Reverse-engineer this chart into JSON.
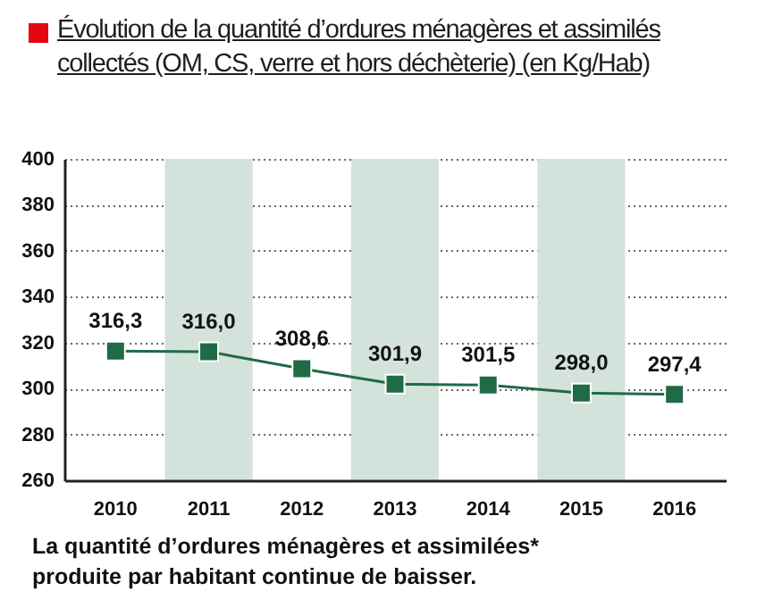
{
  "chart_data": {
    "type": "line",
    "title": "Évolution de la quantité d’ordures ménagères et assimilés collectés (OM, CS, verre et hors déchèterie) (en Kg/Hab)",
    "categories": [
      "2010",
      "2011",
      "2012",
      "2013",
      "2014",
      "2015",
      "2016"
    ],
    "series": [
      {
        "color": "#1e6b45",
        "values": [
          316.3,
          316.0,
          308.6,
          301.9,
          301.5,
          298.0,
          297.4
        ],
        "value_labels": [
          "316,3",
          "316,0",
          "308,6",
          "301,9",
          "301,5",
          "298,0",
          "297,4"
        ]
      }
    ],
    "ylim": [
      260,
      400
    ],
    "yticks": [
      260,
      280,
      300,
      320,
      340,
      360,
      380,
      400
    ],
    "grid": "y",
    "marker": "square",
    "line_style": "solid",
    "bands": [
      {
        "axis": "x",
        "from": "2011",
        "to": "2011",
        "color": "#d3e2da"
      },
      {
        "axis": "x",
        "from": "2013",
        "to": "2013",
        "color": "#d3e2da"
      },
      {
        "axis": "x",
        "from": "2015",
        "to": "2015",
        "color": "#d3e2da"
      }
    ],
    "annotations": [
      "La quantité d’ordures ménagères et assimilées* produite par habitant continue de baisser."
    ]
  }
}
